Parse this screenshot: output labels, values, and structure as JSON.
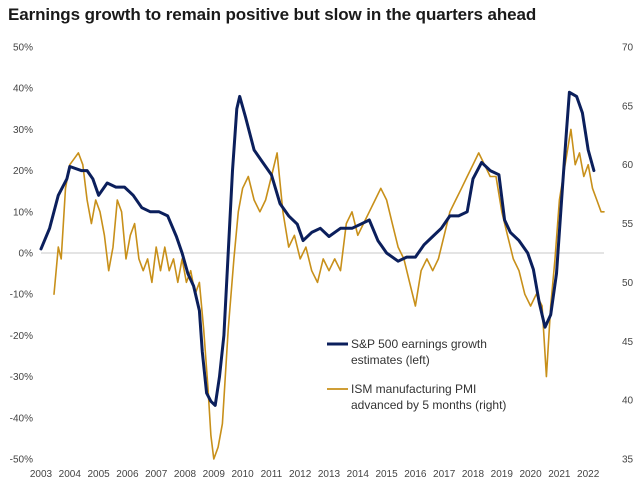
{
  "chart_data": {
    "type": "line",
    "title": "Earnings growth to remain positive but slow in the quarters ahead",
    "x_ticks": [
      "2003",
      "2004",
      "2005",
      "2006",
      "2007",
      "2008",
      "2009",
      "2010",
      "2011",
      "2012",
      "2013",
      "2014",
      "2015",
      "2016",
      "2017",
      "2018",
      "2019",
      "2020",
      "2021",
      "2022"
    ],
    "left_axis": {
      "ticks": [
        "50%",
        "40%",
        "30%",
        "20%",
        "10%",
        "0%",
        "-10%",
        "-20%",
        "-30%",
        "-40%",
        "-50%"
      ],
      "range": [
        -50,
        50
      ]
    },
    "right_axis": {
      "ticks": [
        "70",
        "65",
        "60",
        "55",
        "50",
        "45",
        "40",
        "35"
      ],
      "range": [
        35,
        70
      ]
    },
    "legend_position": "center-right",
    "series": [
      {
        "name_lines": [
          "S&P 500 earnings growth",
          "estimates (left)"
        ],
        "axis": "left",
        "color": "#0b1f5c",
        "points": [
          [
            2003.0,
            1
          ],
          [
            2003.3,
            6
          ],
          [
            2003.6,
            14
          ],
          [
            2003.9,
            18
          ],
          [
            2004.0,
            21
          ],
          [
            2004.4,
            20
          ],
          [
            2004.6,
            20
          ],
          [
            2004.8,
            18
          ],
          [
            2005.0,
            14
          ],
          [
            2005.3,
            17
          ],
          [
            2005.6,
            16
          ],
          [
            2005.9,
            16
          ],
          [
            2006.2,
            14
          ],
          [
            2006.5,
            11
          ],
          [
            2006.8,
            10
          ],
          [
            2007.1,
            10
          ],
          [
            2007.4,
            9
          ],
          [
            2007.7,
            4
          ],
          [
            2007.9,
            0
          ],
          [
            2008.1,
            -5
          ],
          [
            2008.3,
            -8
          ],
          [
            2008.5,
            -14
          ],
          [
            2008.6,
            -24
          ],
          [
            2008.75,
            -34
          ],
          [
            2008.9,
            -36
          ],
          [
            2009.05,
            -37
          ],
          [
            2009.2,
            -30
          ],
          [
            2009.35,
            -20
          ],
          [
            2009.5,
            0
          ],
          [
            2009.65,
            20
          ],
          [
            2009.8,
            35
          ],
          [
            2009.9,
            38
          ],
          [
            2010.1,
            33
          ],
          [
            2010.4,
            25
          ],
          [
            2010.7,
            22
          ],
          [
            2011.0,
            19
          ],
          [
            2011.3,
            12
          ],
          [
            2011.6,
            9
          ],
          [
            2011.9,
            7
          ],
          [
            2012.1,
            3
          ],
          [
            2012.4,
            5
          ],
          [
            2012.7,
            6
          ],
          [
            2013.0,
            4
          ],
          [
            2013.4,
            6
          ],
          [
            2013.8,
            6
          ],
          [
            2014.1,
            7
          ],
          [
            2014.4,
            8
          ],
          [
            2014.7,
            3
          ],
          [
            2015.0,
            0
          ],
          [
            2015.4,
            -2
          ],
          [
            2015.7,
            -1
          ],
          [
            2016.0,
            -1
          ],
          [
            2016.3,
            2
          ],
          [
            2016.6,
            4
          ],
          [
            2016.9,
            6
          ],
          [
            2017.2,
            9
          ],
          [
            2017.5,
            9
          ],
          [
            2017.8,
            10
          ],
          [
            2018.0,
            18
          ],
          [
            2018.3,
            22
          ],
          [
            2018.6,
            20
          ],
          [
            2018.9,
            19
          ],
          [
            2019.1,
            8
          ],
          [
            2019.3,
            5
          ],
          [
            2019.6,
            3
          ],
          [
            2019.9,
            0
          ],
          [
            2020.1,
            -4
          ],
          [
            2020.3,
            -12
          ],
          [
            2020.5,
            -18
          ],
          [
            2020.7,
            -15
          ],
          [
            2020.9,
            -5
          ],
          [
            2021.1,
            15
          ],
          [
            2021.25,
            30
          ],
          [
            2021.35,
            39
          ],
          [
            2021.6,
            38
          ],
          [
            2021.8,
            34
          ],
          [
            2022.0,
            25
          ],
          [
            2022.2,
            20
          ]
        ]
      },
      {
        "name_lines": [
          "ISM manufacturing PMI",
          "advanced by 5 months (right)"
        ],
        "axis": "right",
        "color": "#c8901a",
        "points": [
          [
            2003.45,
            49
          ],
          [
            2003.6,
            53
          ],
          [
            2003.7,
            52
          ],
          [
            2003.85,
            58
          ],
          [
            2004.0,
            60
          ],
          [
            2004.15,
            60.5
          ],
          [
            2004.3,
            61
          ],
          [
            2004.45,
            60
          ],
          [
            2004.6,
            57
          ],
          [
            2004.75,
            55
          ],
          [
            2004.9,
            57
          ],
          [
            2005.05,
            56
          ],
          [
            2005.2,
            54
          ],
          [
            2005.35,
            51
          ],
          [
            2005.5,
            53
          ],
          [
            2005.65,
            57
          ],
          [
            2005.8,
            56
          ],
          [
            2005.95,
            52
          ],
          [
            2006.1,
            54
          ],
          [
            2006.25,
            55
          ],
          [
            2006.4,
            52
          ],
          [
            2006.55,
            51
          ],
          [
            2006.7,
            52
          ],
          [
            2006.85,
            50
          ],
          [
            2007.0,
            53
          ],
          [
            2007.15,
            51
          ],
          [
            2007.3,
            53
          ],
          [
            2007.45,
            51
          ],
          [
            2007.6,
            52
          ],
          [
            2007.75,
            50
          ],
          [
            2007.9,
            52
          ],
          [
            2008.05,
            50
          ],
          [
            2008.2,
            51
          ],
          [
            2008.35,
            49
          ],
          [
            2008.5,
            50
          ],
          [
            2008.65,
            46
          ],
          [
            2008.8,
            41
          ],
          [
            2008.9,
            37
          ],
          [
            2009.0,
            35
          ],
          [
            2009.15,
            36
          ],
          [
            2009.3,
            38
          ],
          [
            2009.5,
            46
          ],
          [
            2009.7,
            52
          ],
          [
            2009.85,
            56
          ],
          [
            2010.0,
            58
          ],
          [
            2010.2,
            59
          ],
          [
            2010.4,
            57
          ],
          [
            2010.6,
            56
          ],
          [
            2010.8,
            57
          ],
          [
            2011.0,
            59
          ],
          [
            2011.2,
            61
          ],
          [
            2011.4,
            56
          ],
          [
            2011.6,
            53
          ],
          [
            2011.8,
            54
          ],
          [
            2012.0,
            52
          ],
          [
            2012.2,
            53
          ],
          [
            2012.4,
            51
          ],
          [
            2012.6,
            50
          ],
          [
            2012.8,
            52
          ],
          [
            2013.0,
            51
          ],
          [
            2013.2,
            52
          ],
          [
            2013.4,
            51
          ],
          [
            2013.6,
            55
          ],
          [
            2013.8,
            56
          ],
          [
            2014.0,
            54
          ],
          [
            2014.2,
            55
          ],
          [
            2014.4,
            56
          ],
          [
            2014.6,
            57
          ],
          [
            2014.8,
            58
          ],
          [
            2015.0,
            57
          ],
          [
            2015.2,
            55
          ],
          [
            2015.4,
            53
          ],
          [
            2015.6,
            52
          ],
          [
            2015.8,
            50
          ],
          [
            2016.0,
            48
          ],
          [
            2016.2,
            51
          ],
          [
            2016.4,
            52
          ],
          [
            2016.6,
            51
          ],
          [
            2016.8,
            52
          ],
          [
            2017.0,
            54
          ],
          [
            2017.2,
            56
          ],
          [
            2017.4,
            57
          ],
          [
            2017.6,
            58
          ],
          [
            2017.8,
            59
          ],
          [
            2018.0,
            60
          ],
          [
            2018.2,
            61
          ],
          [
            2018.4,
            60
          ],
          [
            2018.6,
            59
          ],
          [
            2018.8,
            59
          ],
          [
            2019.0,
            56
          ],
          [
            2019.2,
            54
          ],
          [
            2019.4,
            52
          ],
          [
            2019.6,
            51
          ],
          [
            2019.8,
            49
          ],
          [
            2020.0,
            48
          ],
          [
            2020.2,
            49
          ],
          [
            2020.4,
            48
          ],
          [
            2020.55,
            42
          ],
          [
            2020.7,
            48
          ],
          [
            2020.85,
            52
          ],
          [
            2021.0,
            57
          ],
          [
            2021.2,
            60
          ],
          [
            2021.4,
            63
          ],
          [
            2021.55,
            60
          ],
          [
            2021.7,
            61
          ],
          [
            2021.85,
            59
          ],
          [
            2022.0,
            60
          ],
          [
            2022.15,
            58
          ],
          [
            2022.3,
            57
          ],
          [
            2022.45,
            56
          ],
          [
            2022.55,
            56
          ]
        ]
      }
    ]
  }
}
